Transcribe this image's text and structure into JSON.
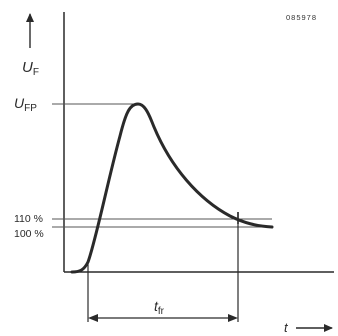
{
  "figure_id": "085978",
  "axis": {
    "y_label_main": "U",
    "y_label_sub": "F",
    "x_label": "t"
  },
  "levels": {
    "peak_main": "U",
    "peak_sub": "FP",
    "level_110": "110 %",
    "level_100": "100 %"
  },
  "interval": {
    "label_main": "t",
    "label_sub": "fr"
  },
  "colors": {
    "ink": "#2a2a2a",
    "thin_line": "#555555",
    "background": "#ffffff"
  }
}
